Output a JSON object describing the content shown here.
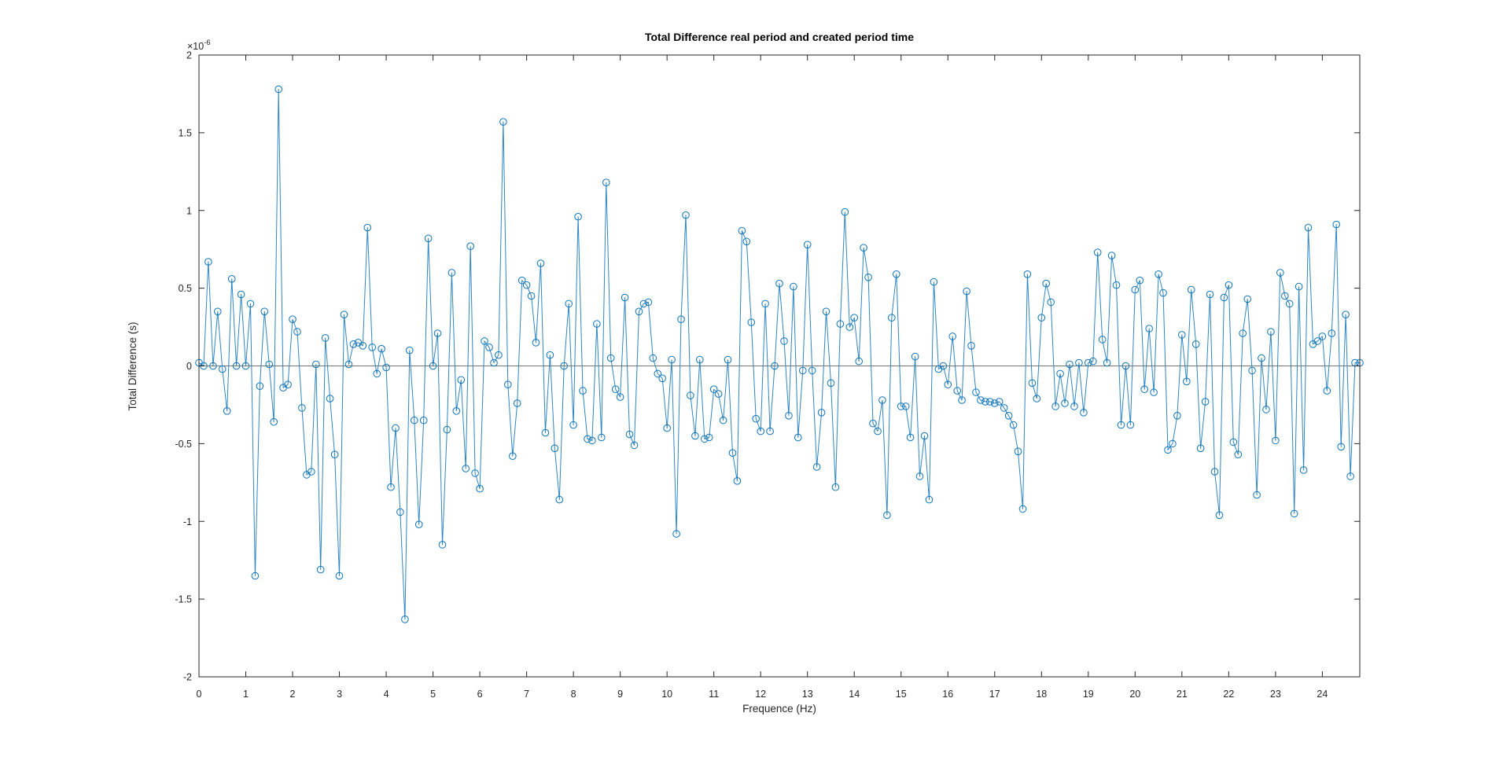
{
  "figure": {
    "title": "Total Difference real period and created period time",
    "xlabel": "Frequence (Hz)",
    "ylabel": "Total Difference (s)",
    "y_multiplier_label": "×10^-6"
  },
  "chart_data": {
    "type": "line",
    "title": "Total Difference real period and created period time",
    "xlabel": "Frequence (Hz)",
    "ylabel": "Total Difference (s)",
    "y_multiplier": "×10",
    "y_exponent": "-6",
    "y_unit_note": "values are in units of 1e-6 seconds (axis multiplier ×10^-6)",
    "xlim": [
      0,
      24.8
    ],
    "ylim": [
      -2,
      2
    ],
    "xticks": [
      0,
      1,
      2,
      3,
      4,
      5,
      6,
      7,
      8,
      9,
      10,
      11,
      12,
      13,
      14,
      15,
      16,
      17,
      18,
      19,
      20,
      21,
      22,
      23,
      24
    ],
    "yticks": [
      -2,
      -1.5,
      -1,
      -0.5,
      0,
      0.5,
      1,
      1.5,
      2
    ],
    "grid": false,
    "zero_line": true,
    "legend": null,
    "marker": "circle",
    "line_color": "#2F86C4",
    "marker_color": "#0F74BA",
    "axis_color": "#262626",
    "zero_line_color": "#444444",
    "x": {
      "start": 0,
      "step": 0.1,
      "count": 249
    },
    "values": [
      0.02,
      0.0,
      0.67,
      0.0,
      0.35,
      -0.02,
      -0.29,
      0.56,
      0.0,
      0.46,
      0.0,
      0.4,
      -1.35,
      -0.13,
      0.35,
      0.01,
      -0.36,
      1.78,
      -0.14,
      -0.12,
      0.3,
      0.22,
      -0.27,
      -0.7,
      -0.68,
      0.01,
      -1.31,
      0.18,
      -0.21,
      -0.57,
      -1.35,
      0.33,
      0.01,
      0.14,
      0.15,
      0.13,
      0.89,
      0.12,
      -0.05,
      0.11,
      -0.01,
      -0.78,
      -0.4,
      -0.94,
      -1.63,
      0.1,
      -0.35,
      -1.02,
      -0.35,
      0.82,
      0.0,
      0.21,
      -1.15,
      -0.41,
      0.6,
      -0.29,
      -0.09,
      -0.66,
      0.77,
      -0.69,
      -0.79,
      0.16,
      0.12,
      0.02,
      0.07,
      1.57,
      -0.12,
      -0.58,
      -0.24,
      0.55,
      0.52,
      0.45,
      0.15,
      0.66,
      -0.43,
      0.07,
      -0.53,
      -0.86,
      0.0,
      0.4,
      -0.38,
      0.96,
      -0.16,
      -0.47,
      -0.48,
      0.27,
      -0.46,
      1.18,
      0.05,
      -0.15,
      -0.2,
      0.44,
      -0.44,
      -0.51,
      0.35,
      0.4,
      0.41,
      0.05,
      -0.05,
      -0.08,
      -0.4,
      0.04,
      -1.08,
      0.3,
      0.97,
      -0.19,
      -0.45,
      0.04,
      -0.47,
      -0.46,
      -0.15,
      -0.18,
      -0.35,
      0.04,
      -0.56,
      -0.74,
      0.87,
      0.8,
      0.28,
      -0.34,
      -0.42,
      0.4,
      -0.42,
      0.0,
      0.53,
      0.16,
      -0.32,
      0.51,
      -0.46,
      -0.03,
      0.78,
      -0.03,
      -0.65,
      -0.3,
      0.35,
      -0.11,
      -0.78,
      0.27,
      0.99,
      0.25,
      0.31,
      0.03,
      0.76,
      0.57,
      -0.37,
      -0.42,
      -0.22,
      -0.96,
      0.31,
      0.59,
      -0.26,
      -0.26,
      -0.46,
      0.06,
      -0.71,
      -0.45,
      -0.86,
      0.54,
      -0.02,
      0.0,
      -0.12,
      0.19,
      -0.16,
      -0.22,
      0.48,
      0.13,
      -0.17,
      -0.22,
      -0.23,
      -0.23,
      -0.24,
      -0.23,
      -0.27,
      -0.32,
      -0.38,
      -0.55,
      -0.92,
      0.59,
      -0.11,
      -0.21,
      0.31,
      0.53,
      0.41,
      -0.26,
      -0.05,
      -0.24,
      0.01,
      -0.26,
      0.02,
      -0.3,
      0.02,
      0.03,
      0.73,
      0.17,
      0.02,
      0.71,
      0.52,
      -0.38,
      0.0,
      -0.38,
      0.49,
      0.55,
      -0.15,
      0.24,
      -0.17,
      0.59,
      0.47,
      -0.54,
      -0.5,
      -0.32,
      0.2,
      -0.1,
      0.49,
      0.14,
      -0.53,
      -0.23,
      0.46,
      -0.68,
      -0.96,
      0.44,
      0.52,
      -0.49,
      -0.57,
      0.21,
      0.43,
      -0.03,
      -0.83,
      0.05,
      -0.28,
      0.22,
      -0.48,
      0.6,
      0.45,
      0.4,
      -0.95,
      0.51,
      -0.67,
      0.89,
      0.14,
      0.16,
      0.19,
      -0.16,
      0.21,
      0.91,
      -0.52,
      0.33,
      -0.71,
      0.02,
      0.02
    ]
  }
}
